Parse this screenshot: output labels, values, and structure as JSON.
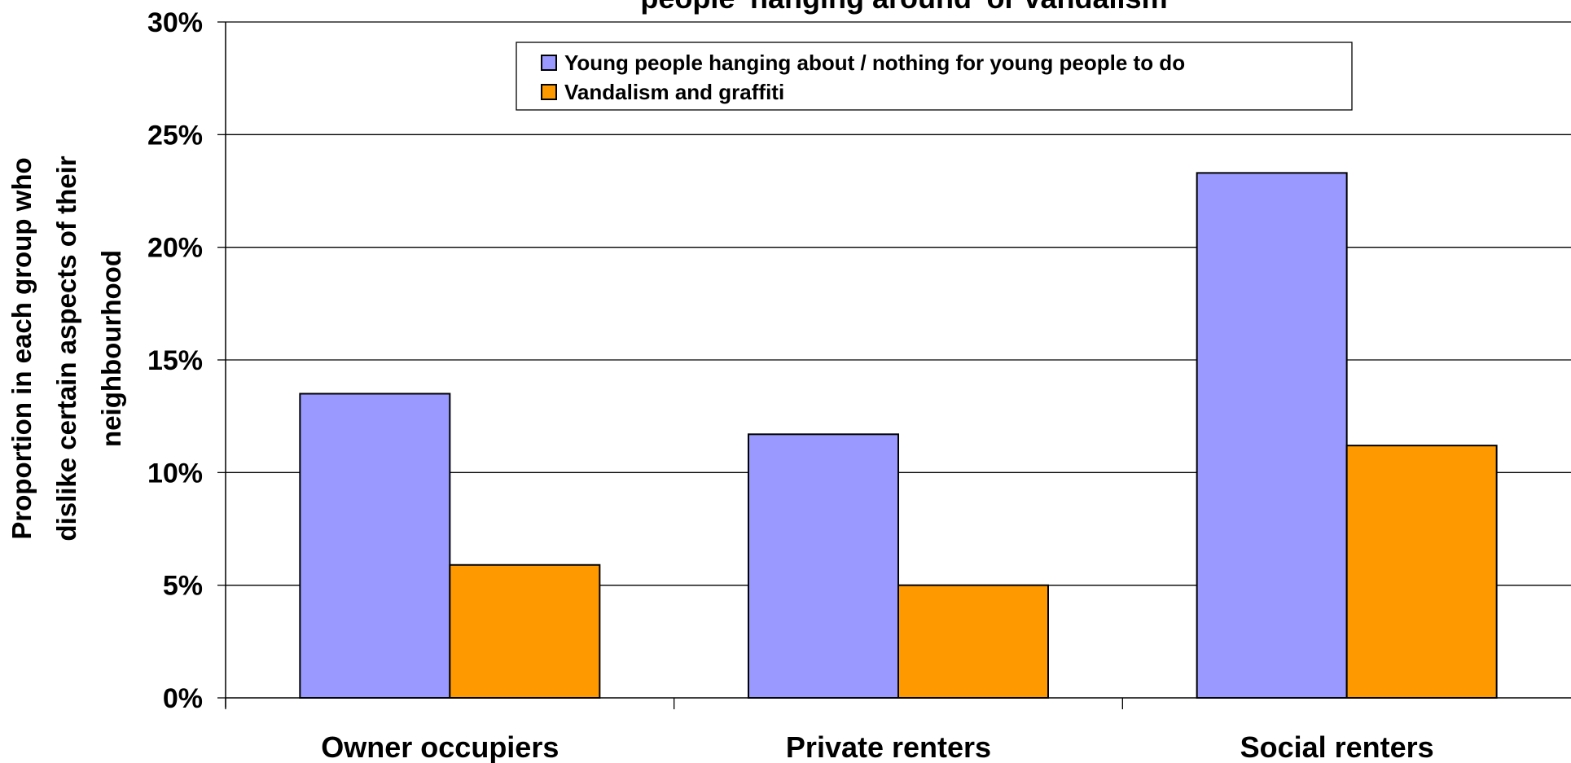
{
  "chart_data": {
    "type": "bar",
    "title": "people 'hanging around' or vandalism",
    "ylabel": "Proportion in each group who dislike certain aspects of their neighbourhood",
    "ylabel_lines": [
      "Proportion in each group who",
      "dislike certain aspects of their",
      "neighbourhood"
    ],
    "xlabel": "",
    "categories": [
      "Owner occupiers",
      "Private renters",
      "Social renters"
    ],
    "ylim": [
      0,
      0.3
    ],
    "yticks": [
      0,
      0.05,
      0.1,
      0.15,
      0.2,
      0.25,
      0.3
    ],
    "ytick_labels": [
      "0%",
      "5%",
      "10%",
      "15%",
      "20%",
      "25%",
      "30%"
    ],
    "grid": true,
    "legend_position": "top-center",
    "series": [
      {
        "name": "Young people hanging about / nothing for young people to do",
        "color": "#9999ff",
        "values": [
          0.135,
          0.117,
          0.233
        ]
      },
      {
        "name": "Vandalism and graffiti",
        "color": "#ff9900",
        "values": [
          0.059,
          0.05,
          0.112
        ]
      }
    ]
  }
}
